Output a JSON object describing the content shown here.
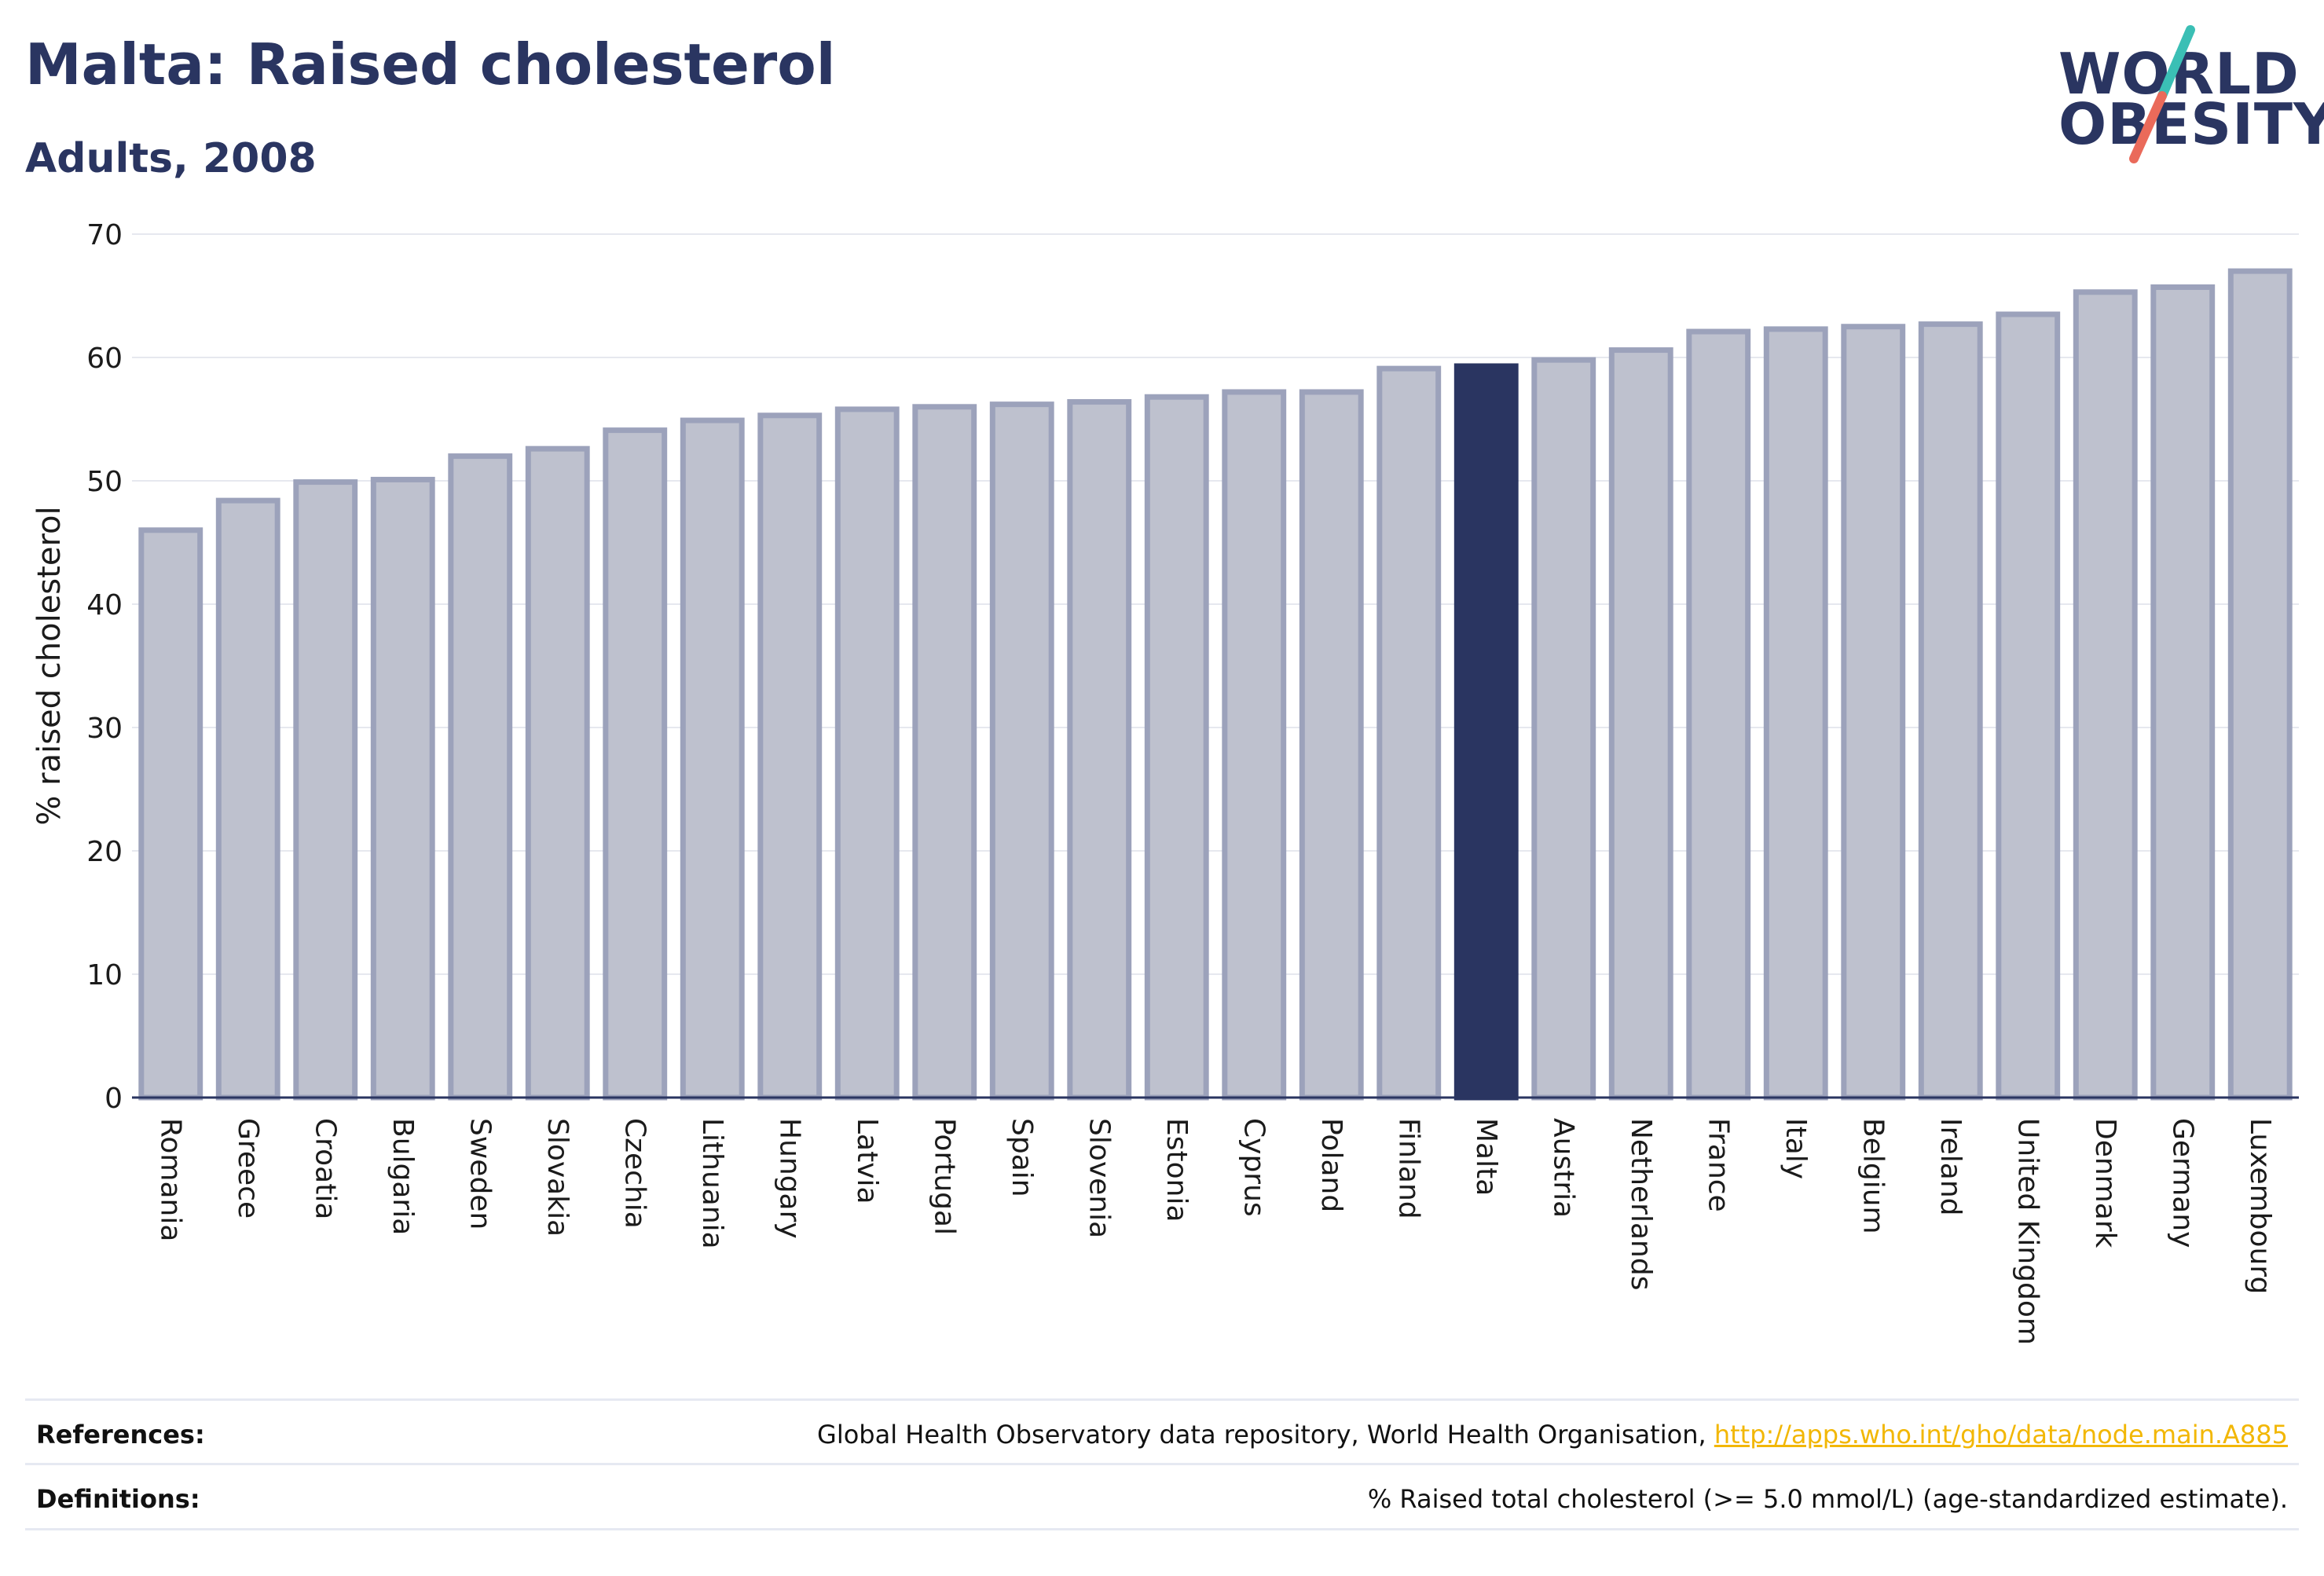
{
  "header": {
    "title": "Malta: Raised cholesterol",
    "subtitle": "Adults, 2008"
  },
  "logo": {
    "line1": "WORLD",
    "line2": "OBESITY",
    "accent_top": "#3bbfb5",
    "accent_bottom": "#ea6a5a"
  },
  "colors": {
    "brand": "#2a3561",
    "bar_fill": "#bec1ce",
    "bar_stroke": "#9ca2bb",
    "link": "#f2b705"
  },
  "chart_data": {
    "type": "bar",
    "ylabel": "% raised cholesterol",
    "xlabel": "",
    "ylim": [
      0,
      70
    ],
    "yticks": [
      0,
      10,
      20,
      30,
      40,
      50,
      60,
      70
    ],
    "grid": true,
    "highlight": "Malta",
    "categories": [
      "Romania",
      "Greece",
      "Croatia",
      "Bulgaria",
      "Sweden",
      "Slovakia",
      "Czechia",
      "Lithuania",
      "Hungary",
      "Latvia",
      "Portugal",
      "Spain",
      "Slovenia",
      "Estonia",
      "Cyprus",
      "Poland",
      "Finland",
      "Malta",
      "Austria",
      "Netherlands",
      "France",
      "Italy",
      "Belgium",
      "Ireland",
      "United Kingdom",
      "Denmark",
      "Germany",
      "Luxembourg"
    ],
    "values": [
      46.0,
      48.4,
      49.9,
      50.1,
      52.0,
      52.6,
      54.1,
      54.9,
      55.3,
      55.8,
      56.0,
      56.2,
      56.4,
      56.8,
      57.2,
      57.2,
      59.1,
      59.3,
      59.8,
      60.6,
      62.1,
      62.3,
      62.5,
      62.7,
      63.5,
      65.3,
      65.7,
      67.0
    ]
  },
  "footer": {
    "references_label": "References:",
    "references_text": "Global Health Observatory data repository, World Health Organisation, ",
    "references_link": "http://apps.who.int/gho/data/node.main.A885",
    "definitions_label": "Definitions:",
    "definitions_text": "% Raised total cholesterol (>= 5.0 mmol/L) (age-standardized estimate)."
  }
}
